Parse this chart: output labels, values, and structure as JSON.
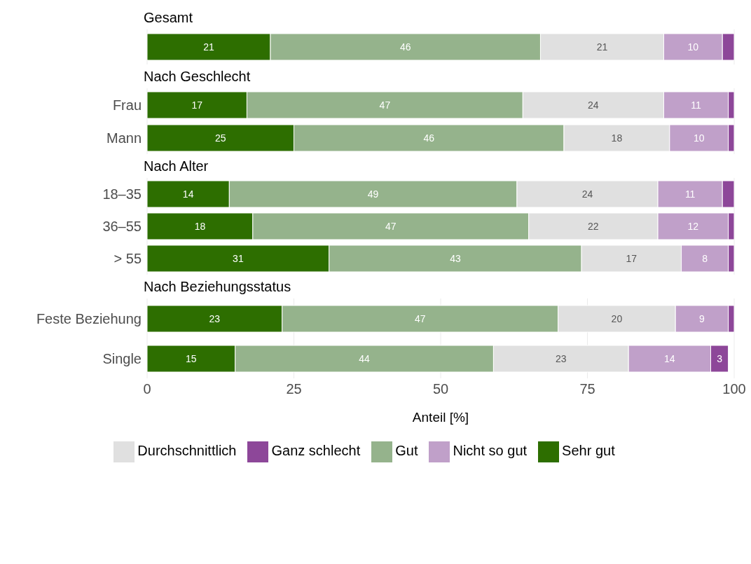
{
  "chart_data": [
    {
      "type": "bar",
      "orientation": "horizontal",
      "stacked": true,
      "title": "Gesamt",
      "categories": [
        null
      ],
      "xlim": [
        0,
        100
      ],
      "xticks": [
        0,
        25,
        50,
        75,
        100
      ],
      "grid": "x",
      "tick_labels": "y",
      "series": [
        {
          "color": "#2d6e00",
          "values": [
            21
          ],
          "value_labels": [
            "21"
          ]
        },
        {
          "color": "#95b38c",
          "values": [
            46
          ],
          "value_labels": [
            "46"
          ]
        },
        {
          "color": "#e0e0e0",
          "values": [
            21
          ],
          "value_labels": [
            "21"
          ]
        },
        {
          "color": "#c0a0c9",
          "values": [
            10
          ],
          "value_labels": [
            "10"
          ]
        },
        {
          "color": "#8d4799",
          "values": [
            2
          ],
          "value_labels": [
            null
          ]
        }
      ]
    },
    {
      "type": "bar",
      "orientation": "horizontal",
      "stacked": true,
      "title": "Nach Geschlecht",
      "categories": [
        "Frau",
        "Mann"
      ],
      "xlim": [
        0,
        100
      ],
      "xticks": [
        0,
        25,
        50,
        75,
        100
      ],
      "grid": "x",
      "tick_labels": "y",
      "series": [
        {
          "color": "#2d6e00",
          "values": [
            17,
            25
          ],
          "value_labels": [
            "17",
            "25"
          ]
        },
        {
          "color": "#95b38c",
          "values": [
            47,
            46
          ],
          "value_labels": [
            "47",
            "46"
          ]
        },
        {
          "color": "#e0e0e0",
          "values": [
            24,
            18
          ],
          "value_labels": [
            "24",
            "18"
          ]
        },
        {
          "color": "#c0a0c9",
          "values": [
            11,
            10
          ],
          "value_labels": [
            "11",
            "10"
          ]
        },
        {
          "color": "#8d4799",
          "values": [
            1,
            1
          ],
          "value_labels": [
            null,
            null
          ]
        }
      ]
    },
    {
      "type": "bar",
      "orientation": "horizontal",
      "stacked": true,
      "title": "Nach Alter",
      "categories": [
        "18–35",
        "36–55",
        "> 55"
      ],
      "xlim": [
        0,
        100
      ],
      "xticks": [
        0,
        25,
        50,
        75,
        100
      ],
      "grid": "x",
      "tick_labels": "y",
      "series": [
        {
          "color": "#2d6e00",
          "values": [
            14,
            18,
            31
          ],
          "value_labels": [
            "14",
            "18",
            "31"
          ]
        },
        {
          "color": "#95b38c",
          "values": [
            49,
            47,
            43
          ],
          "value_labels": [
            "49",
            "47",
            "43"
          ]
        },
        {
          "color": "#e0e0e0",
          "values": [
            24,
            22,
            17
          ],
          "value_labels": [
            "24",
            "22",
            "17"
          ]
        },
        {
          "color": "#c0a0c9",
          "values": [
            11,
            12,
            8
          ],
          "value_labels": [
            "11",
            "12",
            "8"
          ]
        },
        {
          "color": "#8d4799",
          "values": [
            2,
            1,
            1
          ],
          "value_labels": [
            null,
            null,
            null
          ]
        }
      ]
    },
    {
      "type": "bar",
      "orientation": "horizontal",
      "stacked": true,
      "title": "Nach Beziehungsstatus",
      "categories": [
        "Feste Beziehung",
        "Single"
      ],
      "xlim": [
        0,
        100
      ],
      "xticks": [
        0,
        25,
        50,
        75,
        100
      ],
      "grid": "x",
      "xlabel": "Anteil [%]",
      "legend": "bottom",
      "series": [
        {
          "name": "Sehr gut",
          "color": "#2d6e00",
          "values": [
            23,
            15
          ],
          "value_labels": [
            "23",
            "15"
          ]
        },
        {
          "name": "Gut",
          "color": "#95b38c",
          "values": [
            47,
            44
          ],
          "value_labels": [
            "47",
            "44"
          ]
        },
        {
          "name": "Durchschnittlich",
          "color": "#e0e0e0",
          "values": [
            20,
            23
          ],
          "value_labels": [
            "20",
            "23"
          ]
        },
        {
          "name": "Nicht so gut",
          "color": "#c0a0c9",
          "values": [
            9,
            14
          ],
          "value_labels": [
            "9",
            "14"
          ]
        },
        {
          "name": "Ganz schlecht",
          "color": "#8d4799",
          "values": [
            1,
            3
          ],
          "value_labels": [
            null,
            "3"
          ]
        }
      ]
    }
  ]
}
